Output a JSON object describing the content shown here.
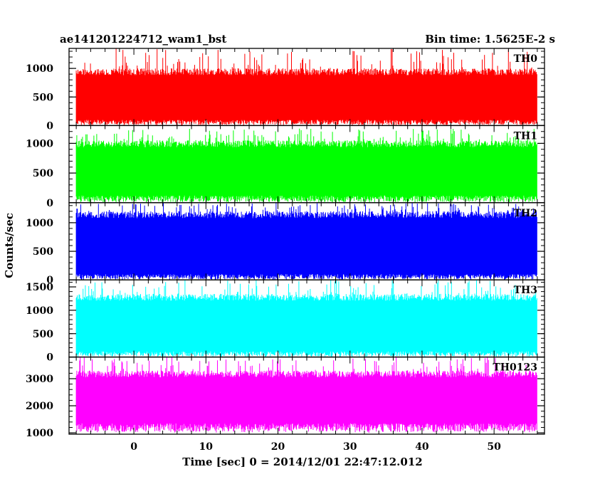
{
  "header": {
    "left_title": "ae141201224712_wam1_bst",
    "right_title": "Bin time: 1.5625E-2 s"
  },
  "chart_data": {
    "type": "line",
    "title": "ae141201224712_wam1_bst",
    "subtitle": "Bin time: 1.5625E-2 s",
    "xlabel": "Time [sec] 0 = 2014/12/01 22:47:12.012",
    "ylabel": "Counts/sec",
    "xlim": [
      -9,
      57
    ],
    "x_range_data": [
      -8,
      56
    ],
    "x_ticks": [
      0,
      10,
      20,
      30,
      40,
      50
    ],
    "x_tick_labels": [
      "0",
      "10",
      "20",
      "30",
      "40",
      "50"
    ],
    "grid": false,
    "panels": [
      {
        "name": "TH0",
        "color": "#ff0000",
        "ylim": [
          0,
          1350
        ],
        "y_ticks": [
          0,
          500,
          1000
        ],
        "y_tick_labels": [
          "0",
          "500",
          "1000"
        ],
        "typical_low": 100,
        "typical_high": 1000,
        "max": 1350,
        "min": 0
      },
      {
        "name": "TH1",
        "color": "#00ff00",
        "ylim": [
          0,
          1300
        ],
        "y_ticks": [
          0,
          500,
          1000
        ],
        "y_tick_labels": [
          "0",
          "500",
          "1000"
        ],
        "typical_low": 120,
        "typical_high": 1050,
        "max": 1250,
        "min": 0
      },
      {
        "name": "TH2",
        "color": "#0000ff",
        "ylim": [
          0,
          1350
        ],
        "y_ticks": [
          0,
          500,
          1000
        ],
        "y_tick_labels": [
          "0",
          "500",
          "1000"
        ],
        "typical_low": 100,
        "typical_high": 1200,
        "max": 1350,
        "min": 0
      },
      {
        "name": "TH3",
        "color": "#00ffff",
        "ylim": [
          0,
          1650
        ],
        "y_ticks": [
          0,
          500,
          1000,
          1500
        ],
        "y_tick_labels": [
          "0",
          "500",
          "1000",
          "1500"
        ],
        "typical_low": 120,
        "typical_high": 1350,
        "max": 1650,
        "min": 0
      },
      {
        "name": "TH0123",
        "color": "#ff00ff",
        "ylim": [
          950,
          3800
        ],
        "y_ticks": [
          1000,
          2000,
          3000
        ],
        "y_tick_labels": [
          "1000",
          "2000",
          "3000"
        ],
        "typical_low": 1350,
        "typical_high": 3300,
        "max": 3800,
        "min": 1000
      }
    ]
  }
}
